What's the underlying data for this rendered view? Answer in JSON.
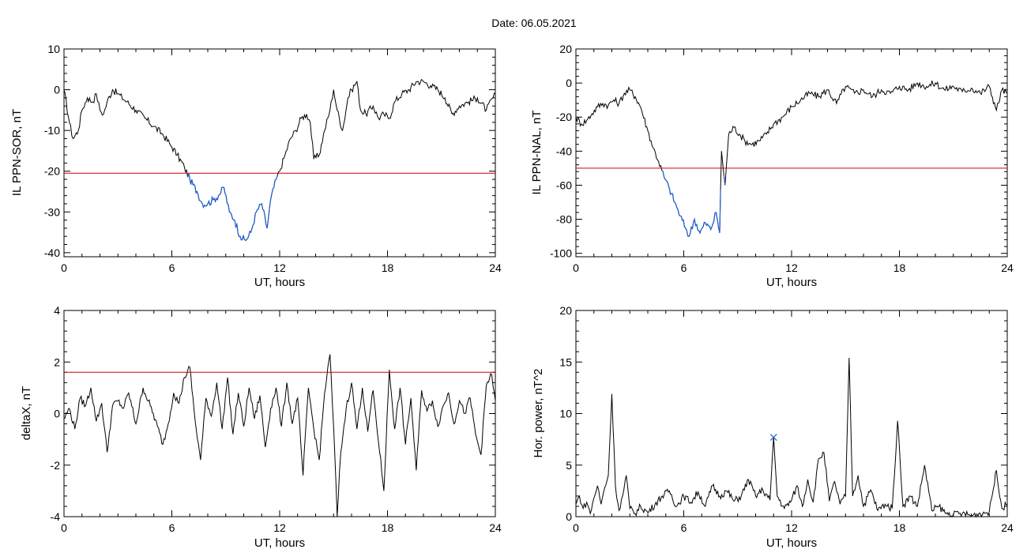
{
  "header": {
    "date_label": "Date:  06.05.2021"
  },
  "colors": {
    "axis": "#000000",
    "trace": "#000000",
    "threshold": "#cc0000",
    "highlight": "#1f5fcf",
    "marker": "#1f5fcf"
  },
  "chart_data": [
    {
      "type": "line",
      "xlabel": "UT, hours",
      "ylabel": "IL PPN-SOR, nT",
      "xlim": [
        0,
        24
      ],
      "ylim": [
        -41,
        10
      ],
      "xticks": [
        0,
        6,
        12,
        18,
        24
      ],
      "xtick_labels": [
        "0",
        "6",
        "12",
        "18",
        "24"
      ],
      "yticks": [
        -40,
        -30,
        -20,
        -10,
        0,
        10
      ],
      "ytick_labels": [
        "-40",
        "-30",
        "-20",
        "-10",
        "0",
        "10"
      ],
      "threshold": -20.5,
      "highlight_below_threshold": true,
      "points": [
        [
          0,
          0
        ],
        [
          0.3,
          -8
        ],
        [
          0.5,
          -12
        ],
        [
          0.8,
          -10
        ],
        [
          1.0,
          -5
        ],
        [
          1.3,
          -2
        ],
        [
          1.6,
          -3
        ],
        [
          1.8,
          -1
        ],
        [
          2.0,
          -5
        ],
        [
          2.2,
          -6
        ],
        [
          2.4,
          -3
        ],
        [
          2.7,
          0
        ],
        [
          3.0,
          -1
        ],
        [
          3.5,
          -3
        ],
        [
          4.0,
          -5
        ],
        [
          4.5,
          -7
        ],
        [
          5.0,
          -9
        ],
        [
          5.5,
          -11
        ],
        [
          6.0,
          -14
        ],
        [
          6.3,
          -16
        ],
        [
          6.7,
          -19
        ],
        [
          7.0,
          -22
        ],
        [
          7.4,
          -25
        ],
        [
          7.7,
          -28
        ],
        [
          8.0,
          -28
        ],
        [
          8.3,
          -27
        ],
        [
          8.6,
          -26
        ],
        [
          8.9,
          -24
        ],
        [
          9.2,
          -30
        ],
        [
          9.5,
          -32
        ],
        [
          9.8,
          -36
        ],
        [
          10.1,
          -37
        ],
        [
          10.4,
          -35
        ],
        [
          10.7,
          -30
        ],
        [
          11.0,
          -28
        ],
        [
          11.3,
          -34
        ],
        [
          11.5,
          -27
        ],
        [
          11.8,
          -22
        ],
        [
          12.0,
          -20
        ],
        [
          12.3,
          -16
        ],
        [
          12.6,
          -12
        ],
        [
          12.9,
          -10
        ],
        [
          13.2,
          -7
        ],
        [
          13.5,
          -6
        ],
        [
          13.7,
          -8
        ],
        [
          13.9,
          -17
        ],
        [
          14.2,
          -16
        ],
        [
          14.5,
          -10
        ],
        [
          14.8,
          -5
        ],
        [
          15.0,
          0
        ],
        [
          15.2,
          -5
        ],
        [
          15.5,
          -10
        ],
        [
          15.8,
          -2
        ],
        [
          16.0,
          0
        ],
        [
          16.3,
          2
        ],
        [
          16.5,
          -5
        ],
        [
          16.8,
          -6
        ],
        [
          17.2,
          -4
        ],
        [
          17.5,
          -7
        ],
        [
          17.8,
          -6
        ],
        [
          18.1,
          -7
        ],
        [
          18.4,
          -3
        ],
        [
          18.8,
          -1
        ],
        [
          19.2,
          0
        ],
        [
          19.6,
          2
        ],
        [
          20.0,
          2
        ],
        [
          20.4,
          1
        ],
        [
          20.8,
          0
        ],
        [
          21.2,
          -2
        ],
        [
          21.6,
          -6
        ],
        [
          22.0,
          -4
        ],
        [
          22.5,
          -3
        ],
        [
          23.0,
          -2
        ],
        [
          23.5,
          -5
        ],
        [
          24,
          -1
        ]
      ]
    },
    {
      "type": "line",
      "xlabel": "UT, hours",
      "ylabel": "IL PPN-NAL, nT",
      "xlim": [
        0,
        24
      ],
      "ylim": [
        -102,
        20
      ],
      "xticks": [
        0,
        6,
        12,
        18,
        24
      ],
      "xtick_labels": [
        "0",
        "6",
        "12",
        "18",
        "24"
      ],
      "yticks": [
        -100,
        -80,
        -60,
        -40,
        -20,
        0,
        20
      ],
      "ytick_labels": [
        "-100",
        "-80",
        "-60",
        "-40",
        "-20",
        "0",
        "20"
      ],
      "threshold": -50,
      "highlight_below_threshold": true,
      "points": [
        [
          0,
          -20
        ],
        [
          0.3,
          -24
        ],
        [
          0.6,
          -22
        ],
        [
          0.9,
          -18
        ],
        [
          1.2,
          -14
        ],
        [
          1.5,
          -12
        ],
        [
          1.8,
          -13
        ],
        [
          2.1,
          -10
        ],
        [
          2.4,
          -12
        ],
        [
          2.7,
          -6
        ],
        [
          3.0,
          -4
        ],
        [
          3.3,
          -8
        ],
        [
          3.6,
          -14
        ],
        [
          4.0,
          -28
        ],
        [
          4.3,
          -38
        ],
        [
          4.6,
          -46
        ],
        [
          4.9,
          -55
        ],
        [
          5.2,
          -62
        ],
        [
          5.5,
          -70
        ],
        [
          5.8,
          -78
        ],
        [
          6.1,
          -85
        ],
        [
          6.3,
          -90
        ],
        [
          6.6,
          -80
        ],
        [
          6.9,
          -88
        ],
        [
          7.2,
          -82
        ],
        [
          7.5,
          -86
        ],
        [
          7.8,
          -76
        ],
        [
          8.0,
          -88
        ],
        [
          8.1,
          -40
        ],
        [
          8.3,
          -60
        ],
        [
          8.5,
          -30
        ],
        [
          8.8,
          -26
        ],
        [
          9.1,
          -30
        ],
        [
          9.4,
          -34
        ],
        [
          9.8,
          -36
        ],
        [
          10.2,
          -34
        ],
        [
          10.6,
          -30
        ],
        [
          11.0,
          -24
        ],
        [
          11.5,
          -20
        ],
        [
          12.0,
          -14
        ],
        [
          12.5,
          -10
        ],
        [
          13.0,
          -6
        ],
        [
          13.5,
          -8
        ],
        [
          14.0,
          -4
        ],
        [
          14.5,
          -12
        ],
        [
          15.0,
          -2
        ],
        [
          15.5,
          -6
        ],
        [
          16.0,
          -4
        ],
        [
          16.5,
          -8
        ],
        [
          17.0,
          -4
        ],
        [
          17.5,
          -6
        ],
        [
          18.0,
          -2
        ],
        [
          18.5,
          -4
        ],
        [
          19.0,
          0
        ],
        [
          19.5,
          -2
        ],
        [
          20.0,
          0
        ],
        [
          20.5,
          -4
        ],
        [
          21.0,
          -2
        ],
        [
          21.5,
          -5
        ],
        [
          22.0,
          -3
        ],
        [
          22.5,
          -6
        ],
        [
          23.0,
          -2
        ],
        [
          23.4,
          -16
        ],
        [
          23.7,
          -4
        ],
        [
          24,
          -6
        ]
      ]
    },
    {
      "type": "line",
      "xlabel": "UT, hours",
      "ylabel": "deltaX, nT",
      "xlim": [
        0,
        24
      ],
      "ylim": [
        -4,
        4
      ],
      "xticks": [
        0,
        6,
        12,
        18,
        24
      ],
      "xtick_labels": [
        "0",
        "6",
        "12",
        "18",
        "24"
      ],
      "yticks": [
        -4,
        -2,
        0,
        2,
        4
      ],
      "ytick_labels": [
        "-4",
        "-2",
        "0",
        "2",
        "4"
      ],
      "threshold": 1.6,
      "highlight_below_threshold": false,
      "points": [
        [
          0,
          -0.2
        ],
        [
          0.3,
          0.2
        ],
        [
          0.6,
          -0.6
        ],
        [
          0.9,
          0.6
        ],
        [
          1.2,
          0.3
        ],
        [
          1.5,
          1.0
        ],
        [
          1.8,
          -0.3
        ],
        [
          2.1,
          0.4
        ],
        [
          2.4,
          -1.5
        ],
        [
          2.7,
          0.3
        ],
        [
          3.0,
          0.5
        ],
        [
          3.3,
          0.2
        ],
        [
          3.6,
          0.8
        ],
        [
          4.0,
          -0.4
        ],
        [
          4.4,
          1.0
        ],
        [
          4.8,
          0.3
        ],
        [
          5.2,
          -0.5
        ],
        [
          5.5,
          -1.2
        ],
        [
          5.8,
          -0.4
        ],
        [
          6.1,
          0.8
        ],
        [
          6.4,
          0.4
        ],
        [
          6.7,
          1.4
        ],
        [
          7.0,
          1.8
        ],
        [
          7.3,
          -0.3
        ],
        [
          7.6,
          -1.8
        ],
        [
          7.9,
          0.6
        ],
        [
          8.2,
          -0.1
        ],
        [
          8.5,
          1.2
        ],
        [
          8.8,
          -0.6
        ],
        [
          9.1,
          1.4
        ],
        [
          9.4,
          -0.8
        ],
        [
          9.7,
          0.8
        ],
        [
          10.0,
          -0.5
        ],
        [
          10.3,
          1.0
        ],
        [
          10.6,
          -0.2
        ],
        [
          10.9,
          0.7
        ],
        [
          11.2,
          -1.3
        ],
        [
          11.5,
          0.2
        ],
        [
          11.8,
          1.0
        ],
        [
          12.1,
          -0.5
        ],
        [
          12.4,
          1.2
        ],
        [
          12.7,
          -0.4
        ],
        [
          13.0,
          0.6
        ],
        [
          13.3,
          -2.4
        ],
        [
          13.6,
          1.0
        ],
        [
          13.9,
          -0.6
        ],
        [
          14.2,
          -1.8
        ],
        [
          14.5,
          0.8
        ],
        [
          14.8,
          2.3
        ],
        [
          15.0,
          -0.5
        ],
        [
          15.2,
          -4.0
        ],
        [
          15.4,
          -1.5
        ],
        [
          15.7,
          0.2
        ],
        [
          16.0,
          1.2
        ],
        [
          16.3,
          -0.6
        ],
        [
          16.6,
          1.0
        ],
        [
          16.9,
          -0.7
        ],
        [
          17.2,
          0.9
        ],
        [
          17.5,
          -1.1
        ],
        [
          17.8,
          -3.0
        ],
        [
          18.1,
          1.7
        ],
        [
          18.4,
          -0.6
        ],
        [
          18.7,
          1.0
        ],
        [
          19.0,
          -1.2
        ],
        [
          19.3,
          0.6
        ],
        [
          19.6,
          -2.2
        ],
        [
          19.9,
          0.9
        ],
        [
          20.2,
          0.1
        ],
        [
          20.5,
          0.5
        ],
        [
          20.8,
          -0.5
        ],
        [
          21.1,
          0.3
        ],
        [
          21.4,
          0.8
        ],
        [
          21.7,
          -0.4
        ],
        [
          22.0,
          0.5
        ],
        [
          22.3,
          0.0
        ],
        [
          22.6,
          0.6
        ],
        [
          22.9,
          -0.8
        ],
        [
          23.2,
          -1.6
        ],
        [
          23.5,
          1.1
        ],
        [
          23.8,
          1.5
        ],
        [
          24,
          0.5
        ]
      ]
    },
    {
      "type": "line",
      "xlabel": "UT, hours",
      "ylabel": "Hor. power, nT^2",
      "xlim": [
        0,
        24
      ],
      "ylim": [
        0,
        20
      ],
      "xticks": [
        0,
        6,
        12,
        18,
        24
      ],
      "xtick_labels": [
        "0",
        "6",
        "12",
        "18",
        "24"
      ],
      "yticks": [
        0,
        5,
        10,
        15,
        20
      ],
      "ytick_labels": [
        "0",
        "5",
        "10",
        "15",
        "20"
      ],
      "marker": {
        "x": 11.0,
        "y": 7.7,
        "symbol": "x"
      },
      "points": [
        [
          0,
          1.2
        ],
        [
          0.2,
          2.0
        ],
        [
          0.4,
          0.8
        ],
        [
          0.6,
          1.4
        ],
        [
          0.8,
          0.3
        ],
        [
          1.0,
          1.8
        ],
        [
          1.2,
          3.0
        ],
        [
          1.4,
          1.2
        ],
        [
          1.6,
          2.8
        ],
        [
          1.8,
          4.0
        ],
        [
          2.0,
          11.9
        ],
        [
          2.2,
          3.0
        ],
        [
          2.4,
          0.6
        ],
        [
          2.6,
          2.0
        ],
        [
          2.8,
          4.0
        ],
        [
          3.0,
          0.8
        ],
        [
          3.3,
          0.3
        ],
        [
          3.6,
          1.0
        ],
        [
          4.0,
          0.4
        ],
        [
          4.4,
          1.2
        ],
        [
          4.8,
          2.0
        ],
        [
          5.2,
          2.5
        ],
        [
          5.6,
          1.0
        ],
        [
          6.0,
          2.0
        ],
        [
          6.4,
          1.4
        ],
        [
          6.8,
          2.4
        ],
        [
          7.2,
          1.0
        ],
        [
          7.6,
          3.0
        ],
        [
          8.0,
          2.0
        ],
        [
          8.4,
          2.5
        ],
        [
          8.8,
          1.5
        ],
        [
          9.2,
          2.0
        ],
        [
          9.6,
          3.6
        ],
        [
          10.0,
          2.0
        ],
        [
          10.4,
          2.6
        ],
        [
          10.8,
          1.6
        ],
        [
          11.0,
          7.7
        ],
        [
          11.2,
          2.0
        ],
        [
          11.6,
          0.8
        ],
        [
          12.0,
          1.6
        ],
        [
          12.3,
          3.0
        ],
        [
          12.6,
          1.0
        ],
        [
          12.9,
          3.6
        ],
        [
          13.2,
          1.4
        ],
        [
          13.5,
          5.6
        ],
        [
          13.8,
          6.2
        ],
        [
          14.1,
          1.5
        ],
        [
          14.4,
          3.4
        ],
        [
          14.7,
          1.2
        ],
        [
          15.0,
          2.0
        ],
        [
          15.2,
          15.4
        ],
        [
          15.4,
          2.0
        ],
        [
          15.7,
          4.0
        ],
        [
          16.0,
          1.0
        ],
        [
          16.4,
          2.6
        ],
        [
          16.8,
          0.6
        ],
        [
          17.2,
          1.2
        ],
        [
          17.6,
          0.8
        ],
        [
          17.9,
          9.3
        ],
        [
          18.2,
          1.0
        ],
        [
          18.6,
          2.0
        ],
        [
          19.0,
          1.0
        ],
        [
          19.4,
          5.0
        ],
        [
          19.8,
          0.6
        ],
        [
          20.2,
          1.0
        ],
        [
          20.6,
          0.3
        ],
        [
          21.0,
          0.2
        ],
        [
          21.5,
          0.3
        ],
        [
          22.0,
          0.1
        ],
        [
          22.5,
          0.3
        ],
        [
          23.0,
          0.5
        ],
        [
          23.4,
          4.5
        ],
        [
          23.7,
          0.8
        ],
        [
          24,
          1.2
        ]
      ]
    }
  ]
}
